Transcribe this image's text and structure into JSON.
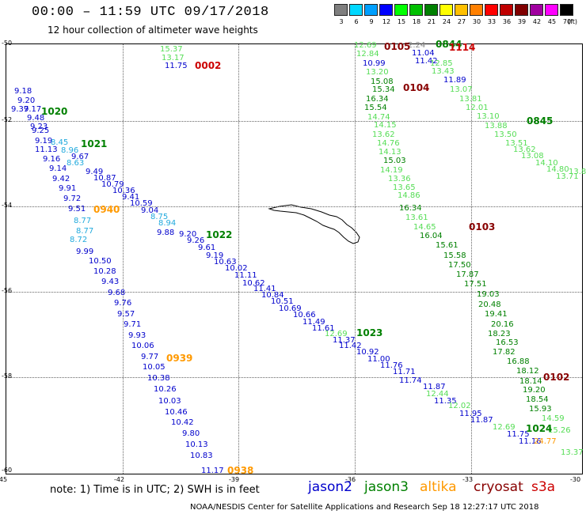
{
  "header": {
    "title": "00:00 – 11:59 UTC 09/17/2018",
    "subtitle": "12 hour collection of altimeter wave heights"
  },
  "colorbar": {
    "unit_label": "(ft)",
    "bins": [
      {
        "label": "3",
        "color": "#7f7f7f"
      },
      {
        "label": "6",
        "color": "#00d8ff"
      },
      {
        "label": "9",
        "color": "#00a0ff"
      },
      {
        "label": "12",
        "color": "#0000ff"
      },
      {
        "label": "15",
        "color": "#00ff00"
      },
      {
        "label": "18",
        "color": "#00c000"
      },
      {
        "label": "21",
        "color": "#008000"
      },
      {
        "label": "24",
        "color": "#ffff00"
      },
      {
        "label": "27",
        "color": "#ffc000"
      },
      {
        "label": "30",
        "color": "#ff8000"
      },
      {
        "label": "33",
        "color": "#ff0000"
      },
      {
        "label": "36",
        "color": "#c00000"
      },
      {
        "label": "39",
        "color": "#800000"
      },
      {
        "label": "42",
        "color": "#a000a0"
      },
      {
        "label": "45",
        "color": "#ff00ff"
      },
      {
        "label": "70",
        "color": "#000000"
      }
    ]
  },
  "map": {
    "lat_ticks": [
      "-50",
      "-52",
      "-54",
      "-56",
      "-58",
      "-60"
    ],
    "lon_ticks": [
      "-45",
      "-42",
      "-39",
      "-36",
      "-33",
      "-30"
    ],
    "colors": {
      "jason2": "#0000cc",
      "jason3": "#008000",
      "jason3_light": "#55dd55",
      "altika": "#ff9900",
      "cryosat": "#880000",
      "s3a": "#cc0000",
      "cyan": "#22aadd",
      "grey": "#888888"
    },
    "observations": [
      {
        "v": "9.18",
        "c": "jason2"
      },
      {
        "v": "9.20",
        "c": "jason2"
      },
      {
        "v": "9.37",
        "c": "jason2"
      },
      {
        "v": "9.17",
        "c": "jason2"
      },
      {
        "v": "9.48",
        "c": "jason2"
      },
      {
        "v": "9.23",
        "c": "jason2"
      },
      {
        "v": "9.25",
        "c": "jason2"
      },
      {
        "v": "9.19",
        "c": "jason2"
      },
      {
        "v": "11.13",
        "c": "jason2"
      },
      {
        "v": "9.16",
        "c": "jason2"
      },
      {
        "v": "9.14",
        "c": "jason2"
      },
      {
        "v": "9.42",
        "c": "jason2"
      },
      {
        "v": "9.91",
        "c": "jason2"
      },
      {
        "v": "9.72",
        "c": "jason2"
      },
      {
        "v": "9.51",
        "c": "jason2"
      },
      {
        "v": "9.99",
        "c": "jason2"
      },
      {
        "v": "10.50",
        "c": "jason2"
      },
      {
        "v": "10.28",
        "c": "jason2"
      },
      {
        "v": "9.43",
        "c": "jason2"
      },
      {
        "v": "9.68",
        "c": "jason2"
      },
      {
        "v": "9.76",
        "c": "jason2"
      },
      {
        "v": "9.57",
        "c": "jason2"
      },
      {
        "v": "9.71",
        "c": "jason2"
      },
      {
        "v": "9.93",
        "c": "jason2"
      },
      {
        "v": "10.06",
        "c": "jason2"
      },
      {
        "v": "9.77",
        "c": "jason2"
      },
      {
        "v": "10.05",
        "c": "jason2"
      },
      {
        "v": "10.38",
        "c": "jason2"
      },
      {
        "v": "10.26",
        "c": "jason2"
      },
      {
        "v": "10.03",
        "c": "jason2"
      },
      {
        "v": "10.46",
        "c": "jason2"
      },
      {
        "v": "10.42",
        "c": "jason2"
      },
      {
        "v": "9.80",
        "c": "jason2"
      },
      {
        "v": "10.13",
        "c": "jason2"
      },
      {
        "v": "10.83",
        "c": "jason2"
      },
      {
        "v": "11.17",
        "c": "jason2"
      },
      {
        "v": "8.45",
        "c": "cyan"
      },
      {
        "v": "8.96",
        "c": "cyan"
      },
      {
        "v": "8.63",
        "c": "cyan"
      },
      {
        "v": "8.77",
        "c": "cyan"
      },
      {
        "v": "8.77",
        "c": "cyan"
      },
      {
        "v": "8.72",
        "c": "cyan"
      },
      {
        "v": "9.67",
        "c": "jason2"
      },
      {
        "v": "9.49",
        "c": "jason2"
      },
      {
        "v": "10.87",
        "c": "jason2"
      },
      {
        "v": "10.79",
        "c": "jason2"
      },
      {
        "v": "10.36",
        "c": "jason2"
      },
      {
        "v": "9.41",
        "c": "jason2"
      },
      {
        "v": "10.59",
        "c": "jason2"
      },
      {
        "v": "9.04",
        "c": "jason2"
      },
      {
        "v": "8.75",
        "c": "cyan"
      },
      {
        "v": "8.94",
        "c": "cyan"
      },
      {
        "v": "9.88",
        "c": "jason2"
      },
      {
        "v": "9.20",
        "c": "jason2"
      },
      {
        "v": "9.26",
        "c": "jason2"
      },
      {
        "v": "9.61",
        "c": "jason2"
      },
      {
        "v": "9.19",
        "c": "jason2"
      },
      {
        "v": "10.63",
        "c": "jason2"
      },
      {
        "v": "10.02",
        "c": "jason2"
      },
      {
        "v": "11.11",
        "c": "jason2"
      },
      {
        "v": "10.62",
        "c": "jason2"
      },
      {
        "v": "11.41",
        "c": "jason2"
      },
      {
        "v": "10.84",
        "c": "jason2"
      },
      {
        "v": "10.51",
        "c": "jason2"
      },
      {
        "v": "10.69",
        "c": "jason2"
      },
      {
        "v": "10.66",
        "c": "jason2"
      },
      {
        "v": "11.49",
        "c": "jason2"
      },
      {
        "v": "11.61",
        "c": "jason2"
      },
      {
        "v": "12.69",
        "c": "jason3_light"
      },
      {
        "v": "11.37",
        "c": "jason2"
      },
      {
        "v": "11.42",
        "c": "jason2"
      },
      {
        "v": "10.92",
        "c": "jason2"
      },
      {
        "v": "11.00",
        "c": "jason2"
      },
      {
        "v": "11.76",
        "c": "jason2"
      },
      {
        "v": "11.71",
        "c": "jason2"
      },
      {
        "v": "11.74",
        "c": "jason2"
      },
      {
        "v": "11.87",
        "c": "jason2"
      },
      {
        "v": "12.44",
        "c": "jason3_light"
      },
      {
        "v": "11.35",
        "c": "jason2"
      },
      {
        "v": "12.02",
        "c": "jason3_light"
      },
      {
        "v": "11.95",
        "c": "jason2"
      },
      {
        "v": "11.87",
        "c": "jason2"
      },
      {
        "v": "12.69",
        "c": "jason3_light"
      },
      {
        "v": "11.75",
        "c": "jason2"
      },
      {
        "v": "11.16",
        "c": "jason2"
      },
      {
        "v": "15.37",
        "c": "jason3_light"
      },
      {
        "v": "13.17",
        "c": "jason3_light"
      },
      {
        "v": "11.75",
        "c": "jason2"
      },
      {
        "v": "12.69",
        "c": "jason3_light"
      },
      {
        "v": "12.84",
        "c": "jason3_light"
      },
      {
        "v": "10.99",
        "c": "jason2"
      },
      {
        "v": "13.20",
        "c": "jason3_light"
      },
      {
        "v": "15.08",
        "c": "jason3"
      },
      {
        "v": "15.34",
        "c": "jason3"
      },
      {
        "v": "16.34",
        "c": "jason3"
      },
      {
        "v": "15.54",
        "c": "jason3"
      },
      {
        "v": "14.74",
        "c": "jason3_light"
      },
      {
        "v": "14.15",
        "c": "jason3_light"
      },
      {
        "v": "13.62",
        "c": "jason3_light"
      },
      {
        "v": "14.76",
        "c": "jason3_light"
      },
      {
        "v": "14.13",
        "c": "jason3_light"
      },
      {
        "v": "15.03",
        "c": "jason3"
      },
      {
        "v": "14.19",
        "c": "jason3_light"
      },
      {
        "v": "13.36",
        "c": "jason3_light"
      },
      {
        "v": "13.65",
        "c": "jason3_light"
      },
      {
        "v": "14.86",
        "c": "jason3_light"
      },
      {
        "v": "16.34",
        "c": "jason3"
      },
      {
        "v": "13.61",
        "c": "jason3_light"
      },
      {
        "v": "14.65",
        "c": "jason3_light"
      },
      {
        "v": "16.04",
        "c": "jason3"
      },
      {
        "v": "15.61",
        "c": "jason3"
      },
      {
        "v": "15.58",
        "c": "jason3"
      },
      {
        "v": "17.50",
        "c": "jason3"
      },
      {
        "v": "17.87",
        "c": "jason3"
      },
      {
        "v": "17.51",
        "c": "jason3"
      },
      {
        "v": "19.03",
        "c": "jason3"
      },
      {
        "v": "20.48",
        "c": "jason3"
      },
      {
        "v": "19.41",
        "c": "jason3"
      },
      {
        "v": "20.16",
        "c": "jason3"
      },
      {
        "v": "18.23",
        "c": "jason3"
      },
      {
        "v": "16.53",
        "c": "jason3"
      },
      {
        "v": "17.82",
        "c": "jason3"
      },
      {
        "v": "16.88",
        "c": "jason3"
      },
      {
        "v": "18.12",
        "c": "jason3"
      },
      {
        "v": "18.14",
        "c": "jason3"
      },
      {
        "v": "19.20",
        "c": "jason3"
      },
      {
        "v": "18.54",
        "c": "jason3"
      },
      {
        "v": "15.93",
        "c": "jason3"
      },
      {
        "v": "14.59",
        "c": "jason3_light"
      },
      {
        "v": "15.26",
        "c": "jason3_light"
      },
      {
        "v": "24.77",
        "c": "altika"
      },
      {
        "v": "13.37",
        "c": "jason3_light"
      },
      {
        "v": "2.24",
        "c": "grey"
      },
      {
        "v": "11.04",
        "c": "jason2"
      },
      {
        "v": "11.42",
        "c": "jason2"
      },
      {
        "v": "12.85",
        "c": "jason3_light"
      },
      {
        "v": "13.43",
        "c": "jason3_light"
      },
      {
        "v": "11.89",
        "c": "jason2"
      },
      {
        "v": "13.07",
        "c": "jason3_light"
      },
      {
        "v": "13.81",
        "c": "jason3_light"
      },
      {
        "v": "12.01",
        "c": "jason3_light"
      },
      {
        "v": "13.10",
        "c": "jason3_light"
      },
      {
        "v": "13.88",
        "c": "jason3_light"
      },
      {
        "v": "13.50",
        "c": "jason3_light"
      },
      {
        "v": "13.51",
        "c": "jason3_light"
      },
      {
        "v": "13.62",
        "c": "jason3_light"
      },
      {
        "v": "13.08",
        "c": "jason3_light"
      },
      {
        "v": "14.10",
        "c": "jason3_light"
      },
      {
        "v": "14.80",
        "c": "jason3_light"
      },
      {
        "v": "13.71",
        "c": "jason3_light"
      },
      {
        "v": "13.82",
        "c": "jason3_light"
      }
    ],
    "time_labels": [
      {
        "v": "1020",
        "c": "jason3"
      },
      {
        "v": "1021",
        "c": "jason3"
      },
      {
        "v": "0940",
        "c": "altika"
      },
      {
        "v": "1022",
        "c": "jason3"
      },
      {
        "v": "0939",
        "c": "altika"
      },
      {
        "v": "0938",
        "c": "altika"
      },
      {
        "v": "1023",
        "c": "jason3"
      },
      {
        "v": "1024",
        "c": "jason3"
      },
      {
        "v": "0002",
        "c": "s3a"
      },
      {
        "v": "0105",
        "c": "cryosat"
      },
      {
        "v": "0844",
        "c": "jason3"
      },
      {
        "v": "1114",
        "c": "s3a"
      },
      {
        "v": "0104",
        "c": "cryosat"
      },
      {
        "v": "0845",
        "c": "jason3"
      },
      {
        "v": "0103",
        "c": "cryosat"
      },
      {
        "v": "0102",
        "c": "cryosat"
      }
    ]
  },
  "footer": {
    "note": "note: 1) Time is in UTC; 2) SWH is in feet",
    "legend": [
      {
        "name": "jason2",
        "color": "#0000cc"
      },
      {
        "name": "jason3",
        "color": "#008000"
      },
      {
        "name": "altika",
        "color": "#ff9900"
      },
      {
        "name": "cryosat",
        "color": "#880000"
      },
      {
        "name": "s3a",
        "color": "#cc0000"
      }
    ],
    "credit": "NOAA/NESDIS Center for Satellite Applications and Research     Sep 18 12:27:17 UTC 2018"
  }
}
